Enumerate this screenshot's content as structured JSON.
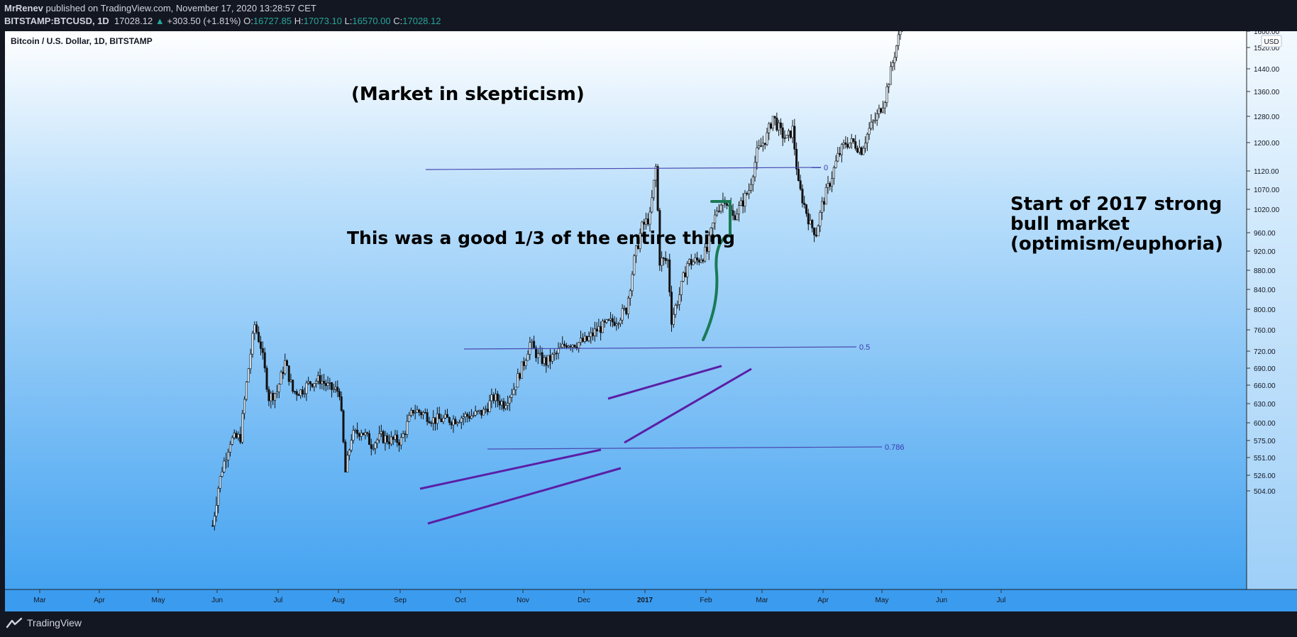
{
  "header": {
    "author": "MrRenev",
    "published_text": "published on TradingView.com, November 17, 2020 13:28:57 CET",
    "symbol": "BITSTAMP:BTCUSD, 1D",
    "last": "17028.12",
    "change": "+303.50 (+1.81%)",
    "open_label": "O:",
    "open": "16727.85",
    "high_label": "H:",
    "high": "17073.10",
    "low_label": "L:",
    "low": "16570.00",
    "close_label": "C:",
    "close": "17028.12"
  },
  "footer": {
    "brand": "TradingView"
  },
  "chart_data": {
    "type": "candlestick",
    "title": "Bitcoin / U.S. Dollar, 1D, BITSTAMP",
    "currency_label": "USD",
    "y_ticks": [
      "1600.00",
      "1520.00",
      "1440.00",
      "1360.00",
      "1280.00",
      "1200.00",
      "1120.00",
      "1070.00",
      "1020.00",
      "960.00",
      "920.00",
      "880.00",
      "840.00",
      "800.00",
      "760.00",
      "720.00",
      "690.00",
      "660.00",
      "630.00",
      "600.00",
      "575.00",
      "551.00",
      "526.00",
      "504.00"
    ],
    "x_ticks": [
      "Mar",
      "Apr",
      "May",
      "Jun",
      "Jul",
      "Aug",
      "Sep",
      "Oct",
      "Nov",
      "Dec",
      "2017",
      "Feb",
      "Mar",
      "Apr",
      "May",
      "Jun",
      "Jul"
    ],
    "fib_levels": [
      {
        "label": "0",
        "price": 1130
      },
      {
        "label": "0.5",
        "price": 728
      },
      {
        "label": "0.786",
        "price": 566
      }
    ],
    "annotations": [
      "(Market in skepticism)",
      "This was a good 1/3 of the entire thing",
      "Start of 2017 strong",
      "bull market",
      "(optimism/euphoria)"
    ],
    "approx_daily_close": [
      {
        "date": "2016-05-27",
        "close": 470
      },
      {
        "date": "2016-06-01",
        "close": 535
      },
      {
        "date": "2016-06-05",
        "close": 575
      },
      {
        "date": "2016-06-10",
        "close": 580
      },
      {
        "date": "2016-06-14",
        "close": 690
      },
      {
        "date": "2016-06-17",
        "close": 770
      },
      {
        "date": "2016-06-20",
        "close": 730
      },
      {
        "date": "2016-06-24",
        "close": 640
      },
      {
        "date": "2016-06-28",
        "close": 650
      },
      {
        "date": "2016-07-02",
        "close": 700
      },
      {
        "date": "2016-07-06",
        "close": 650
      },
      {
        "date": "2016-07-10",
        "close": 650
      },
      {
        "date": "2016-07-15",
        "close": 665
      },
      {
        "date": "2016-07-20",
        "close": 670
      },
      {
        "date": "2016-07-25",
        "close": 655
      },
      {
        "date": "2016-07-30",
        "close": 650
      },
      {
        "date": "2016-08-02",
        "close": 530
      },
      {
        "date": "2016-08-05",
        "close": 580
      },
      {
        "date": "2016-08-10",
        "close": 590
      },
      {
        "date": "2016-08-15",
        "close": 570
      },
      {
        "date": "2016-08-20",
        "close": 580
      },
      {
        "date": "2016-08-25",
        "close": 575
      },
      {
        "date": "2016-08-30",
        "close": 575
      },
      {
        "date": "2016-09-05",
        "close": 620
      },
      {
        "date": "2016-09-10",
        "close": 615
      },
      {
        "date": "2016-09-15",
        "close": 605
      },
      {
        "date": "2016-09-20",
        "close": 605
      },
      {
        "date": "2016-09-25",
        "close": 605
      },
      {
        "date": "2016-09-30",
        "close": 610
      },
      {
        "date": "2016-10-05",
        "close": 612
      },
      {
        "date": "2016-10-10",
        "close": 617
      },
      {
        "date": "2016-10-15",
        "close": 640
      },
      {
        "date": "2016-10-20",
        "close": 630
      },
      {
        "date": "2016-10-25",
        "close": 655
      },
      {
        "date": "2016-10-30",
        "close": 700
      },
      {
        "date": "2016-11-02",
        "close": 735
      },
      {
        "date": "2016-11-06",
        "close": 710
      },
      {
        "date": "2016-11-10",
        "close": 700
      },
      {
        "date": "2016-11-15",
        "close": 715
      },
      {
        "date": "2016-11-20",
        "close": 735
      },
      {
        "date": "2016-11-25",
        "close": 735
      },
      {
        "date": "2016-11-30",
        "close": 740
      },
      {
        "date": "2016-12-05",
        "close": 760
      },
      {
        "date": "2016-12-10",
        "close": 770
      },
      {
        "date": "2016-12-15",
        "close": 780
      },
      {
        "date": "2016-12-20",
        "close": 800
      },
      {
        "date": "2016-12-24",
        "close": 900
      },
      {
        "date": "2016-12-28",
        "close": 975
      },
      {
        "date": "2017-01-01",
        "close": 1000
      },
      {
        "date": "2017-01-04",
        "close": 1130
      },
      {
        "date": "2017-01-06",
        "close": 900
      },
      {
        "date": "2017-01-10",
        "close": 900
      },
      {
        "date": "2017-01-12",
        "close": 780
      },
      {
        "date": "2017-01-16",
        "close": 830
      },
      {
        "date": "2017-01-20",
        "close": 895
      },
      {
        "date": "2017-01-25",
        "close": 900
      },
      {
        "date": "2017-01-30",
        "close": 920
      },
      {
        "date": "2017-02-04",
        "close": 1020
      },
      {
        "date": "2017-02-08",
        "close": 1050
      },
      {
        "date": "2017-02-12",
        "close": 1000
      },
      {
        "date": "2017-02-16",
        "close": 1030
      },
      {
        "date": "2017-02-20",
        "close": 1070
      },
      {
        "date": "2017-02-24",
        "close": 1170
      },
      {
        "date": "2017-03-01",
        "close": 1220
      },
      {
        "date": "2017-03-04",
        "close": 1280
      },
      {
        "date": "2017-03-08",
        "close": 1230
      },
      {
        "date": "2017-03-11",
        "close": 1210
      },
      {
        "date": "2017-03-14",
        "close": 1240
      },
      {
        "date": "2017-03-17",
        "close": 1080
      },
      {
        "date": "2017-03-20",
        "close": 1030
      },
      {
        "date": "2017-03-23",
        "close": 980
      },
      {
        "date": "2017-03-26",
        "close": 960
      },
      {
        "date": "2017-03-29",
        "close": 1030
      },
      {
        "date": "2017-04-02",
        "close": 1090
      },
      {
        "date": "2017-04-06",
        "close": 1160
      },
      {
        "date": "2017-04-10",
        "close": 1200
      },
      {
        "date": "2017-04-14",
        "close": 1200
      },
      {
        "date": "2017-04-18",
        "close": 1180
      },
      {
        "date": "2017-04-22",
        "close": 1240
      },
      {
        "date": "2017-04-26",
        "close": 1280
      },
      {
        "date": "2017-04-30",
        "close": 1340
      },
      {
        "date": "2017-05-03",
        "close": 1430
      },
      {
        "date": "2017-05-06",
        "close": 1530
      },
      {
        "date": "2017-05-09",
        "close": 1650
      }
    ]
  }
}
